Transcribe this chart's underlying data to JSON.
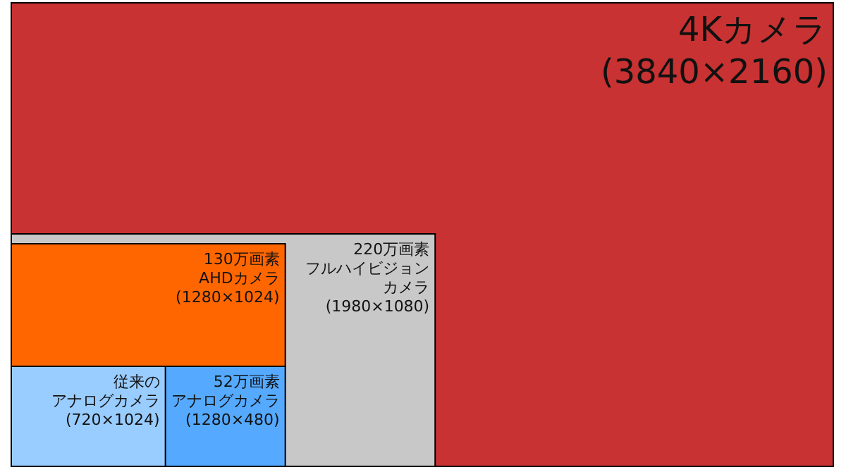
{
  "chart_data": {
    "type": "other",
    "categories": [
      "4Kカメラ",
      "220万画素フルハイビジョンカメラ",
      "130万画素AHDカメラ",
      "従来のアナログカメラ",
      "52万画素アナログカメラ"
    ],
    "colors": [
      "#c83232",
      "#c8c8c8",
      "#ff6600",
      "#99ccff",
      "#55aaff"
    ],
    "values": [
      3840,
      1980,
      1280,
      720,
      1280
    ],
    "value_labels": [
      "(3840×2160)",
      "(1980×1080)",
      "(1280×1024)",
      "(720×1024)",
      "(1280×480)"
    ]
  }
}
